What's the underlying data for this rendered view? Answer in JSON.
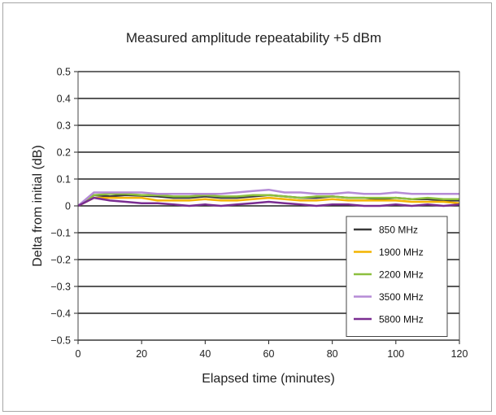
{
  "chart_data": {
    "type": "line",
    "title": "Measured amplitude repeatability +5 dBm",
    "xlabel": "Elapsed time (minutes)",
    "ylabel": "Delta from initial (dB)",
    "xlim": [
      0,
      120
    ],
    "ylim": [
      -0.5,
      0.5
    ],
    "xticks": [
      0,
      20,
      40,
      60,
      80,
      100,
      120
    ],
    "yticks": [
      0.5,
      0.4,
      0.3,
      0.2,
      0.1,
      0,
      -0.1,
      -0.2,
      -0.3,
      -0.4,
      -0.5
    ],
    "xtick_labels": [
      "0",
      "20",
      "40",
      "60",
      "80",
      "100",
      "120"
    ],
    "ytick_labels": [
      "0.5",
      "0.4",
      "0.3",
      "0.2",
      "0.1",
      "0",
      "−0.1",
      "−0.2",
      "−0.3",
      "−0.4",
      "−0.5"
    ],
    "grid": "horizontal",
    "legend_position": "lower-right",
    "x": [
      0,
      5,
      10,
      15,
      20,
      25,
      30,
      35,
      40,
      45,
      50,
      55,
      60,
      65,
      70,
      75,
      80,
      85,
      90,
      95,
      100,
      105,
      110,
      115,
      120
    ],
    "series": [
      {
        "name": "850 MHz",
        "color": "#3a3a3a",
        "values": [
          0,
          0.04,
          0.035,
          0.04,
          0.038,
          0.035,
          0.03,
          0.03,
          0.035,
          0.03,
          0.03,
          0.035,
          0.04,
          0.035,
          0.03,
          0.03,
          0.035,
          0.03,
          0.03,
          0.025,
          0.03,
          0.025,
          0.025,
          0.02,
          0.02
        ]
      },
      {
        "name": "1900 MHz",
        "color": "#f4b400",
        "values": [
          0,
          0.03,
          0.03,
          0.03,
          0.03,
          0.02,
          0.02,
          0.02,
          0.025,
          0.02,
          0.02,
          0.025,
          0.03,
          0.025,
          0.02,
          0.02,
          0.025,
          0.02,
          0.02,
          0.02,
          0.02,
          0.015,
          0.015,
          0.015,
          0.01
        ]
      },
      {
        "name": "2200 MHz",
        "color": "#8cbf3f",
        "values": [
          0,
          0.04,
          0.045,
          0.045,
          0.04,
          0.04,
          0.035,
          0.035,
          0.04,
          0.035,
          0.035,
          0.04,
          0.04,
          0.035,
          0.03,
          0.035,
          0.035,
          0.03,
          0.03,
          0.03,
          0.03,
          0.025,
          0.03,
          0.025,
          0.025
        ]
      },
      {
        "name": "3500 MHz",
        "color": "#b58bd6",
        "values": [
          0,
          0.05,
          0.05,
          0.05,
          0.05,
          0.045,
          0.045,
          0.045,
          0.045,
          0.045,
          0.05,
          0.055,
          0.06,
          0.05,
          0.05,
          0.045,
          0.045,
          0.05,
          0.045,
          0.045,
          0.05,
          0.045,
          0.045,
          0.045,
          0.045
        ]
      },
      {
        "name": "5800 MHz",
        "color": "#7a2d91",
        "values": [
          0,
          0.03,
          0.02,
          0.015,
          0.01,
          0.01,
          0.005,
          0.0,
          0.005,
          0.0,
          0.005,
          0.01,
          0.015,
          0.01,
          0.005,
          0.0,
          0.005,
          0.005,
          0.0,
          0.0,
          0.005,
          0.0,
          0.005,
          0.0,
          0.005
        ]
      }
    ]
  }
}
